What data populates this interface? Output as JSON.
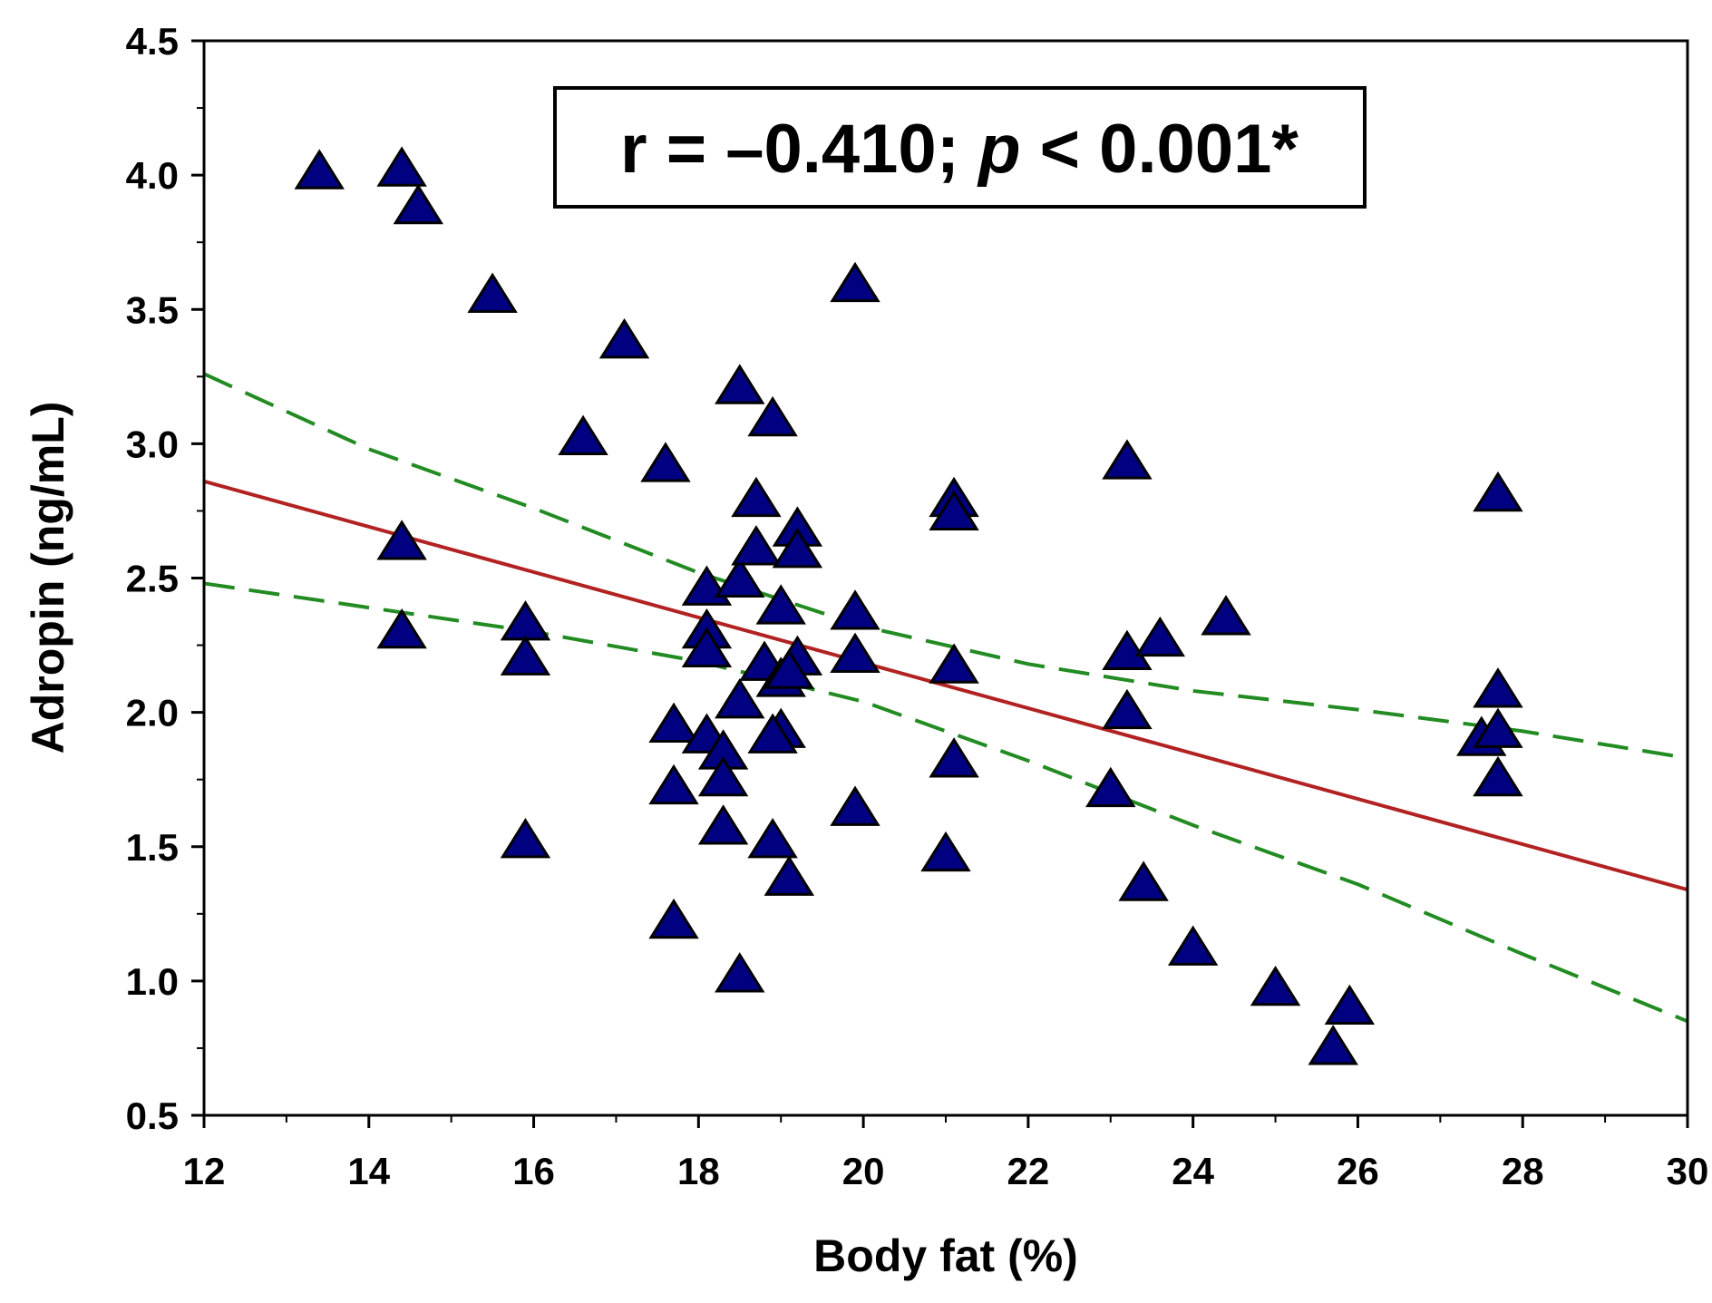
{
  "chart_data": {
    "type": "scatter",
    "xlabel": "Body fat (%)",
    "ylabel": "Adropin (ng/mL)",
    "xlim": [
      12,
      30
    ],
    "ylim": [
      0.5,
      4.5
    ],
    "x_ticks": [
      12,
      14,
      16,
      18,
      20,
      22,
      24,
      26,
      28,
      30
    ],
    "x_tick_labels": [
      "12",
      "14",
      "16",
      "18",
      "20",
      "22",
      "24",
      "26",
      "28",
      "30"
    ],
    "y_ticks": [
      0.5,
      1.0,
      1.5,
      2.0,
      2.5,
      3.0,
      3.5,
      4.0,
      4.5
    ],
    "y_tick_labels": [
      "0.5",
      "1.0",
      "1.5",
      "2.0",
      "2.5",
      "3.0",
      "3.5",
      "4.0",
      "4.5"
    ],
    "grid": false,
    "annotation": {
      "text_prefix": "r = –0.410; ",
      "text_italic": "p",
      "text_suffix": " < 0.001*"
    },
    "colors": {
      "points": "#000080",
      "fit_line": "#b22222",
      "confidence_band": "#228b22"
    },
    "points": [
      {
        "x": 13.4,
        "y": 4.02
      },
      {
        "x": 14.4,
        "y": 4.03
      },
      {
        "x": 14.6,
        "y": 3.89
      },
      {
        "x": 15.5,
        "y": 3.56
      },
      {
        "x": 17.1,
        "y": 3.39
      },
      {
        "x": 16.6,
        "y": 3.03
      },
      {
        "x": 17.6,
        "y": 2.93
      },
      {
        "x": 18.5,
        "y": 3.22
      },
      {
        "x": 18.9,
        "y": 3.1
      },
      {
        "x": 19.9,
        "y": 3.6
      },
      {
        "x": 14.4,
        "y": 2.64
      },
      {
        "x": 14.4,
        "y": 2.31
      },
      {
        "x": 15.9,
        "y": 2.34
      },
      {
        "x": 15.9,
        "y": 2.21
      },
      {
        "x": 15.9,
        "y": 1.53
      },
      {
        "x": 18.1,
        "y": 2.47
      },
      {
        "x": 18.5,
        "y": 2.5
      },
      {
        "x": 18.7,
        "y": 2.8
      },
      {
        "x": 18.7,
        "y": 2.62
      },
      {
        "x": 19.2,
        "y": 2.69
      },
      {
        "x": 19.2,
        "y": 2.61
      },
      {
        "x": 19.0,
        "y": 2.4
      },
      {
        "x": 19.9,
        "y": 2.38
      },
      {
        "x": 19.9,
        "y": 2.22
      },
      {
        "x": 18.1,
        "y": 2.31
      },
      {
        "x": 18.1,
        "y": 2.24
      },
      {
        "x": 18.8,
        "y": 2.19
      },
      {
        "x": 19.0,
        "y": 2.13
      },
      {
        "x": 19.2,
        "y": 2.21
      },
      {
        "x": 19.1,
        "y": 2.16
      },
      {
        "x": 18.5,
        "y": 2.05
      },
      {
        "x": 17.7,
        "y": 1.96
      },
      {
        "x": 18.1,
        "y": 1.92
      },
      {
        "x": 18.3,
        "y": 1.86
      },
      {
        "x": 18.3,
        "y": 1.76
      },
      {
        "x": 17.7,
        "y": 1.73
      },
      {
        "x": 19.0,
        "y": 1.94
      },
      {
        "x": 18.9,
        "y": 1.92
      },
      {
        "x": 18.3,
        "y": 1.58
      },
      {
        "x": 18.9,
        "y": 1.53
      },
      {
        "x": 19.1,
        "y": 1.39
      },
      {
        "x": 19.9,
        "y": 1.65
      },
      {
        "x": 17.7,
        "y": 1.23
      },
      {
        "x": 18.5,
        "y": 1.03
      },
      {
        "x": 21.1,
        "y": 2.8
      },
      {
        "x": 21.1,
        "y": 2.75
      },
      {
        "x": 21.1,
        "y": 2.18
      },
      {
        "x": 21.1,
        "y": 1.83
      },
      {
        "x": 21.0,
        "y": 1.48
      },
      {
        "x": 23.2,
        "y": 2.94
      },
      {
        "x": 23.2,
        "y": 2.23
      },
      {
        "x": 23.6,
        "y": 2.28
      },
      {
        "x": 24.4,
        "y": 2.36
      },
      {
        "x": 23.2,
        "y": 2.01
      },
      {
        "x": 23.0,
        "y": 1.72
      },
      {
        "x": 23.4,
        "y": 1.37
      },
      {
        "x": 24.0,
        "y": 1.13
      },
      {
        "x": 25.0,
        "y": 0.98
      },
      {
        "x": 25.9,
        "y": 0.91
      },
      {
        "x": 25.7,
        "y": 0.76
      },
      {
        "x": 27.7,
        "y": 2.82
      },
      {
        "x": 27.7,
        "y": 2.09
      },
      {
        "x": 27.5,
        "y": 1.91
      },
      {
        "x": 27.7,
        "y": 1.94
      },
      {
        "x": 27.7,
        "y": 1.76
      }
    ],
    "regression_line": [
      {
        "x": 12,
        "y": 2.86
      },
      {
        "x": 30,
        "y": 1.34
      }
    ],
    "confidence_upper": [
      {
        "x": 12,
        "y": 3.26
      },
      {
        "x": 14,
        "y": 2.98
      },
      {
        "x": 16,
        "y": 2.76
      },
      {
        "x": 18,
        "y": 2.52
      },
      {
        "x": 20,
        "y": 2.32
      },
      {
        "x": 22,
        "y": 2.18
      },
      {
        "x": 24,
        "y": 2.08
      },
      {
        "x": 26,
        "y": 2.01
      },
      {
        "x": 28,
        "y": 1.93
      },
      {
        "x": 30,
        "y": 1.83
      }
    ],
    "confidence_lower": [
      {
        "x": 12,
        "y": 2.48
      },
      {
        "x": 14,
        "y": 2.39
      },
      {
        "x": 16,
        "y": 2.3
      },
      {
        "x": 18,
        "y": 2.19
      },
      {
        "x": 20,
        "y": 2.04
      },
      {
        "x": 22,
        "y": 1.82
      },
      {
        "x": 24,
        "y": 1.58
      },
      {
        "x": 26,
        "y": 1.36
      },
      {
        "x": 28,
        "y": 1.1
      },
      {
        "x": 30,
        "y": 0.85
      }
    ]
  }
}
